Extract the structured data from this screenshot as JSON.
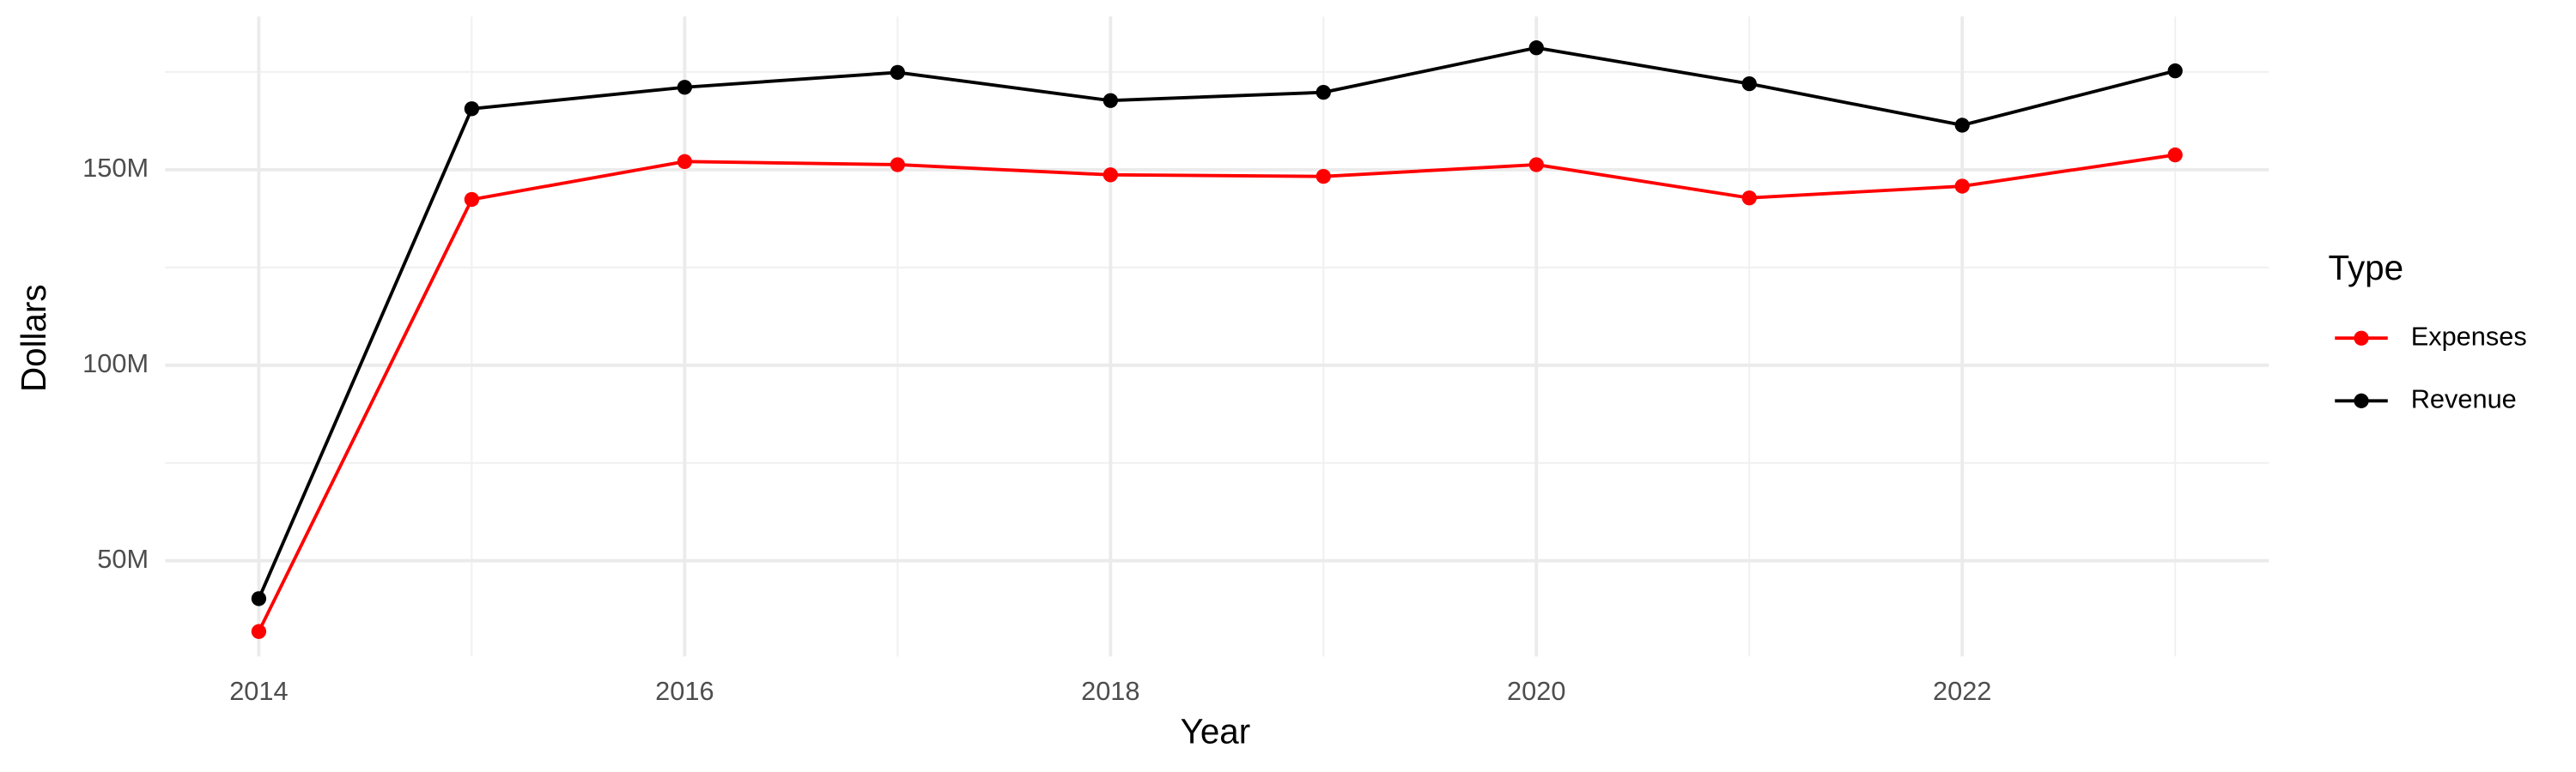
{
  "chart_data": {
    "type": "line",
    "x_label": "Year",
    "y_label": "Dollars",
    "legend_title": "Type",
    "legend_position": "right",
    "grid": true,
    "x": [
      2014,
      2015,
      2016,
      2017,
      2018,
      2019,
      2020,
      2021,
      2022,
      2023
    ],
    "series": [
      {
        "name": "Expenses",
        "color": "#ff0000",
        "values": [
          31900000,
          142400000,
          152100000,
          151300000,
          148700000,
          148300000,
          151300000,
          142800000,
          145800000,
          153800000
        ]
      },
      {
        "name": "Revenue",
        "color": "#000000",
        "values": [
          40300000,
          165600000,
          171100000,
          174900000,
          167700000,
          169800000,
          181200000,
          172000000,
          161400000,
          175300000
        ]
      }
    ],
    "xlim": [
      2013.56,
      2023.44
    ],
    "xticks": [
      2014,
      2016,
      2018,
      2020,
      2022
    ],
    "ylim": [
      25500000,
      189200000
    ],
    "yticks": [
      {
        "value": 50000000,
        "label": "50M"
      },
      {
        "value": 100000000,
        "label": "100M"
      },
      {
        "value": 150000000,
        "label": "150M"
      }
    ]
  }
}
